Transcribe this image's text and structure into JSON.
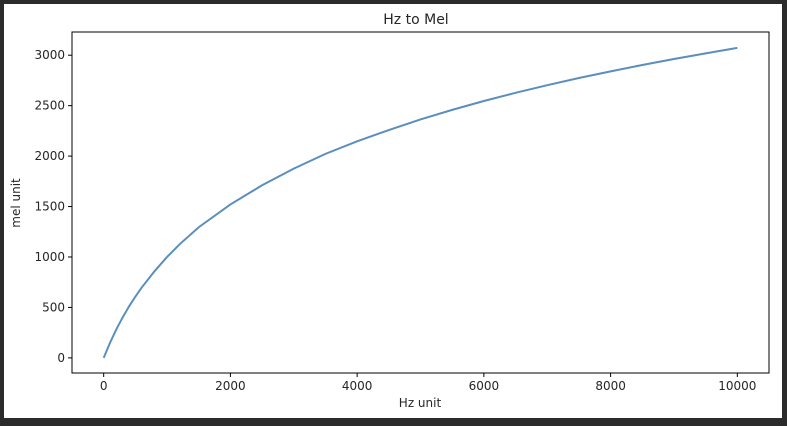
{
  "chart_data": {
    "type": "line",
    "title": "Hz to Mel",
    "xlabel": "Hz unit",
    "ylabel": "mel unit",
    "xlim": [
      -500,
      10500
    ],
    "ylim": [
      -150,
      3230
    ],
    "xticks": [
      0,
      2000,
      4000,
      6000,
      8000,
      10000
    ],
    "yticks": [
      0,
      500,
      1000,
      1500,
      2000,
      2500,
      3000
    ],
    "grid": false,
    "series": [
      {
        "color": "#5a8fbd",
        "x": [
          0,
          100,
          200,
          300,
          400,
          500,
          600,
          800,
          1000,
          1200,
          1500,
          2000,
          2500,
          3000,
          3500,
          4000,
          4500,
          5000,
          5500,
          6000,
          6500,
          7000,
          7500,
          8000,
          8500,
          9000,
          9500,
          10000
        ],
        "y": [
          0,
          150,
          283,
          402,
          510,
          607,
          697,
          857,
          1000,
          1127,
          1295,
          1521,
          1711,
          1876,
          2022,
          2146,
          2258,
          2363,
          2458,
          2546,
          2627,
          2703,
          2774,
          2840,
          2903,
          2962,
          3018,
          3073
        ]
      }
    ]
  }
}
